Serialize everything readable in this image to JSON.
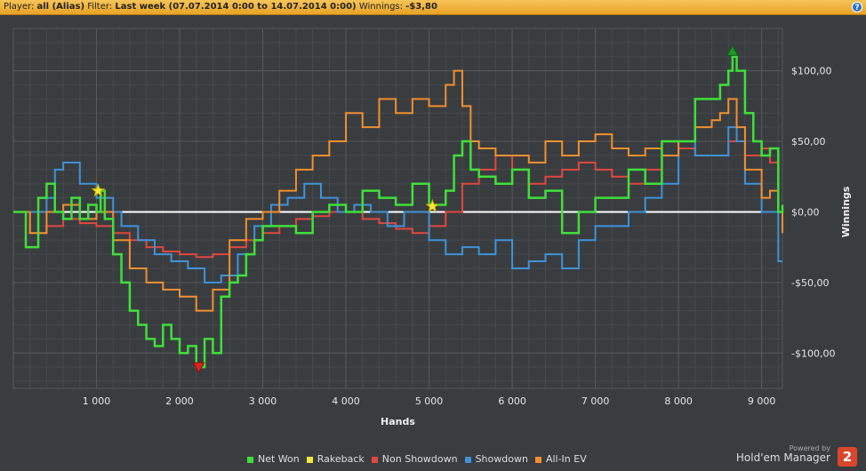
{
  "header": {
    "player_label": "Player:",
    "player_value": "all (Alias)",
    "filter_label": "Filter:",
    "filter_value": "Last week (07.07.2014 0:00 to 14.07.2014 0:00)",
    "winnings_label": "Winnings:",
    "winnings_value": "-$3,80",
    "help_icon": "?"
  },
  "footer": {
    "powered_by": "Powered by",
    "brand": "Hold'em Manager",
    "logo_text": "2"
  },
  "colors": {
    "net_won": "#3fe03a",
    "rakeback": "#f2e93a",
    "non_showdown": "#e0483f",
    "showdown": "#3f93d9",
    "allin_ev": "#f0902f",
    "zero_line": "#ffffff",
    "background": "#3a3d40",
    "grid": "#55585c"
  },
  "chart_data": {
    "type": "line",
    "xlabel": "Hands",
    "ylabel": "Winnings",
    "xlim": [
      0,
      9250
    ],
    "ylim": [
      -125,
      130
    ],
    "xticks": [
      1000,
      2000,
      3000,
      4000,
      5000,
      6000,
      7000,
      8000,
      9000
    ],
    "xtick_labels": [
      "1 000",
      "2 000",
      "3 000",
      "4 000",
      "5 000",
      "6 000",
      "7 000",
      "8 000",
      "9 000"
    ],
    "yticks": [
      100,
      50,
      0,
      -50,
      -100
    ],
    "ytick_labels": [
      "$100,00",
      "$50,00",
      "$0,00",
      "-$50,00",
      "-$100,00"
    ],
    "grid": true,
    "legend_position": "bottom",
    "series": [
      {
        "name": "Net Won",
        "x": [
          0,
          150,
          300,
          400,
          500,
          600,
          700,
          800,
          900,
          1000,
          1050,
          1100,
          1200,
          1300,
          1400,
          1500,
          1600,
          1700,
          1800,
          1900,
          2000,
          2100,
          2200,
          2300,
          2400,
          2500,
          2600,
          2700,
          2800,
          2900,
          3000,
          3200,
          3400,
          3600,
          3800,
          4000,
          4200,
          4400,
          4600,
          4800,
          5000,
          5200,
          5300,
          5400,
          5500,
          5600,
          5800,
          6000,
          6200,
          6400,
          6600,
          6800,
          7000,
          7200,
          7400,
          7600,
          7800,
          8000,
          8200,
          8400,
          8500,
          8600,
          8650,
          8700,
          8800,
          8900,
          9000,
          9100,
          9200,
          9250
        ],
        "y": [
          0,
          -25,
          10,
          20,
          0,
          -5,
          10,
          -5,
          5,
          0,
          15,
          -5,
          -30,
          -50,
          -70,
          -80,
          -90,
          -95,
          -80,
          -90,
          -100,
          -95,
          -110,
          -90,
          -100,
          -60,
          -50,
          -45,
          -30,
          -20,
          -10,
          -10,
          -15,
          0,
          5,
          0,
          15,
          10,
          5,
          20,
          5,
          15,
          40,
          50,
          30,
          25,
          20,
          30,
          10,
          15,
          -15,
          0,
          10,
          10,
          30,
          20,
          50,
          50,
          80,
          80,
          90,
          100,
          110,
          100,
          70,
          50,
          40,
          45,
          0,
          5
        ]
      },
      {
        "name": "Rakeback",
        "x": [
          0,
          1020,
          5040
        ],
        "y": [
          0,
          15,
          4
        ]
      },
      {
        "name": "Non Showdown",
        "x": [
          0,
          200,
          400,
          600,
          800,
          1000,
          1200,
          1400,
          1600,
          1800,
          2000,
          2200,
          2400,
          2600,
          2800,
          3000,
          3200,
          3400,
          3600,
          3800,
          4000,
          4200,
          4400,
          4600,
          4800,
          5000,
          5200,
          5400,
          5600,
          5800,
          6000,
          6200,
          6400,
          6600,
          6800,
          7000,
          7200,
          7400,
          7600,
          7800,
          8000,
          8200,
          8400,
          8600,
          8800,
          9000,
          9100,
          9200
        ],
        "y": [
          0,
          -15,
          -10,
          -5,
          -8,
          -10,
          -15,
          -20,
          -25,
          -28,
          -30,
          -32,
          -30,
          -25,
          -20,
          -15,
          -10,
          -5,
          -3,
          0,
          0,
          -5,
          -8,
          -12,
          -15,
          -10,
          0,
          20,
          30,
          40,
          30,
          20,
          25,
          30,
          35,
          30,
          25,
          20,
          30,
          40,
          45,
          40,
          40,
          50,
          40,
          45,
          35,
          35
        ]
      },
      {
        "name": "Showdown",
        "x": [
          0,
          200,
          400,
          500,
          600,
          800,
          1000,
          1200,
          1300,
          1500,
          1700,
          1900,
          2100,
          2300,
          2500,
          2700,
          2900,
          3100,
          3300,
          3500,
          3700,
          3900,
          4100,
          4300,
          4500,
          4700,
          5000,
          5200,
          5400,
          5600,
          5800,
          6000,
          6200,
          6400,
          6600,
          6800,
          7000,
          7200,
          7400,
          7600,
          7800,
          8000,
          8200,
          8400,
          8600,
          8700,
          8800,
          9000,
          9100,
          9200,
          9250
        ],
        "y": [
          0,
          0,
          10,
          30,
          35,
          20,
          10,
          0,
          -10,
          -20,
          -30,
          -35,
          -40,
          -50,
          -45,
          -30,
          -10,
          5,
          10,
          20,
          10,
          0,
          5,
          0,
          -10,
          0,
          -20,
          -30,
          -25,
          -30,
          -20,
          -40,
          -35,
          -30,
          -40,
          -20,
          -10,
          -10,
          0,
          10,
          20,
          50,
          40,
          40,
          60,
          50,
          20,
          0,
          0,
          -35,
          -35
        ]
      },
      {
        "name": "All-In EV",
        "x": [
          0,
          200,
          400,
          600,
          800,
          1000,
          1200,
          1400,
          1600,
          1800,
          2000,
          2200,
          2400,
          2600,
          2800,
          3000,
          3200,
          3400,
          3600,
          3800,
          4000,
          4200,
          4400,
          4600,
          4800,
          5000,
          5200,
          5300,
          5400,
          5500,
          5600,
          5800,
          6000,
          6200,
          6400,
          6600,
          6800,
          7000,
          7200,
          7400,
          7600,
          7800,
          8000,
          8200,
          8400,
          8500,
          8600,
          8700,
          8800,
          9000,
          9100,
          9200,
          9250
        ],
        "y": [
          0,
          -15,
          0,
          5,
          -5,
          0,
          -20,
          -40,
          -50,
          -55,
          -60,
          -70,
          -55,
          -20,
          -5,
          0,
          15,
          30,
          40,
          50,
          70,
          60,
          80,
          70,
          80,
          75,
          90,
          100,
          75,
          50,
          45,
          40,
          40,
          35,
          50,
          40,
          50,
          55,
          45,
          40,
          45,
          40,
          50,
          60,
          65,
          70,
          80,
          60,
          30,
          10,
          15,
          0,
          -15
        ]
      }
    ],
    "markers": [
      {
        "name": "max",
        "x": 8650,
        "y": 114
      },
      {
        "name": "min",
        "x": 2230,
        "y": -110
      },
      {
        "name": "star",
        "x": 1020,
        "y": 15
      },
      {
        "name": "star",
        "x": 5040,
        "y": 4
      }
    ]
  }
}
